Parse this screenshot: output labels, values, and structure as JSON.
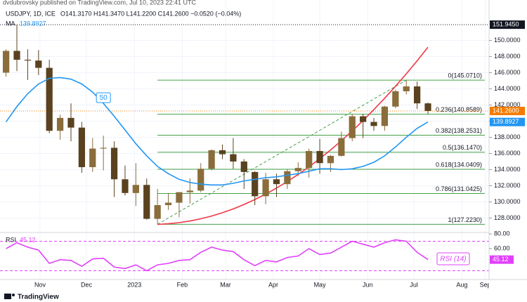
{
  "header": {
    "published": "dvdubrovsky published on TradingView.com, Jul 10, 2023 22:41 UTC",
    "symbol": "USDJPY, 1D, ICE",
    "quote": "O141.3170 H141.3470 L141.2200 C141.2600 −0.0520 (−0.04%)"
  },
  "footer": "TradingView",
  "chart_data": [
    {
      "type": "candlestick",
      "xlim": [
        -0.56,
        44.26
      ],
      "ylim": [
        126.3,
        155
      ],
      "xticks": [
        {
          "value": 3.14,
          "label": "Nov"
        },
        {
          "value": 7.43,
          "label": "Dec"
        },
        {
          "value": 11.86,
          "label": "2023"
        },
        {
          "value": 16.29,
          "label": "Feb"
        },
        {
          "value": 20.29,
          "label": "Mar"
        },
        {
          "value": 24.71,
          "label": "Apr"
        },
        {
          "value": 29,
          "label": "May"
        },
        {
          "value": 33.43,
          "label": "Jun"
        },
        {
          "value": 37.71,
          "label": "Jul"
        },
        {
          "value": 42.14,
          "label": "Aug"
        },
        {
          "value": 44.3,
          "label": "Sep"
        }
      ],
      "yticks": [
        {
          "value": 128,
          "label": "128.0000"
        },
        {
          "value": 130,
          "label": "130.0000"
        },
        {
          "value": 132,
          "label": "132.0000"
        },
        {
          "value": 134,
          "label": "134.0000"
        },
        {
          "value": 136,
          "label": "136.0000"
        },
        {
          "value": 138,
          "label": "138.0000"
        },
        {
          "value": 140,
          "label": "140.0000"
        },
        {
          "value": 142,
          "label": "142.0000"
        },
        {
          "value": 144,
          "label": "144.0000"
        },
        {
          "value": 146,
          "label": "146.0000"
        },
        {
          "value": 148,
          "label": "148.0000"
        },
        {
          "value": 150,
          "label": "150.0000"
        }
      ],
      "grid": true,
      "up_color": "#8a6d3b",
      "down_color": "#5a4220",
      "candles": {
        "open": [
          146.0,
          148.7,
          147.6,
          147.5,
          146.6,
          138.8,
          140.4,
          139.2,
          134.3,
          136.6,
          136.7,
          132.8,
          131.1,
          132.1,
          127.9,
          129.6,
          129.9,
          131.2,
          131.4,
          134.1,
          136.4,
          135.9,
          135.0,
          133.7,
          130.7,
          132.8,
          132.2,
          133.8,
          134.2,
          136.3,
          134.8,
          135.7,
          137.9,
          140.6,
          139.9,
          139.4,
          141.8,
          143.7,
          144.3,
          142.2
        ],
        "high": [
          148.9,
          151.945,
          148.9,
          148.8,
          147.6,
          140.8,
          142.2,
          139.9,
          137.9,
          138.2,
          137.5,
          134.5,
          134.8,
          132.9,
          131.6,
          131.1,
          131.2,
          132.9,
          134.8,
          136.5,
          137.1,
          137.9,
          135.3,
          133.8,
          133.6,
          133.5,
          134.0,
          134.9,
          136.6,
          137.8,
          135.8,
          138.7,
          140.9,
          140.9,
          140.4,
          141.9,
          143.9,
          145.071,
          144.9,
          142.3
        ],
        "low": [
          145.5,
          146.2,
          145.1,
          145.7,
          138.5,
          137.7,
          137.5,
          133.6,
          133.7,
          133.9,
          130.6,
          130.8,
          129.5,
          127.8,
          127.223,
          129.0,
          128.1,
          129.8,
          131.2,
          133.9,
          135.3,
          134.1,
          131.6,
          129.6,
          129.7,
          130.6,
          131.6,
          133.2,
          133.0,
          133.5,
          133.7,
          135.6,
          137.5,
          137.9,
          138.8,
          138.8,
          141.6,
          143.3,
          141.5,
          140.9
        ],
        "close": [
          148.7,
          147.6,
          147.5,
          146.6,
          138.8,
          140.4,
          139.2,
          134.3,
          136.6,
          136.7,
          132.8,
          131.1,
          132.1,
          127.9,
          129.6,
          129.9,
          131.2,
          131.4,
          134.1,
          136.4,
          135.9,
          135.0,
          133.7,
          130.7,
          132.8,
          132.2,
          133.8,
          134.2,
          136.3,
          134.8,
          135.7,
          137.9,
          140.6,
          139.9,
          139.4,
          141.8,
          143.7,
          144.3,
          142.2,
          141.26
        ]
      },
      "series": [
        {
          "name": "MA",
          "label": "50",
          "last_label": "139.8927",
          "color": "#2196f3",
          "values": [
            139.9,
            141.8,
            143.4,
            144.6,
            145.3,
            145.4,
            145.2,
            144.6,
            143.6,
            142.2,
            140.6,
            138.9,
            137.2,
            135.7,
            134.4,
            133.5,
            132.8,
            132.4,
            132.2,
            132.1,
            132.1,
            132.3,
            132.6,
            132.8,
            133.0,
            133.1,
            133.3,
            133.5,
            133.8,
            134.1,
            134.1,
            134.0,
            134.1,
            134.4,
            134.9,
            135.7,
            136.8,
            138.0,
            139.1,
            139.8927
          ]
        },
        {
          "color": "#f23645",
          "values": [
            null,
            null,
            null,
            null,
            null,
            null,
            null,
            null,
            null,
            null,
            null,
            null,
            null,
            null,
            127.21,
            127.29,
            127.43,
            127.63,
            127.91,
            128.25,
            128.66,
            129.13,
            129.68,
            130.29,
            130.96,
            131.71,
            132.52,
            133.4,
            134.34,
            135.35,
            136.43,
            137.58,
            138.79,
            140.07,
            141.42,
            142.83,
            144.31,
            145.86,
            147.47,
            149.15
          ]
        }
      ],
      "fib_color": "#43a047",
      "fib_levels": [
        {
          "value": 145.071,
          "label": "0(145.0710)"
        },
        {
          "value": 140.8589,
          "label": "0.236(140.8589)"
        },
        {
          "value": 138.2531,
          "label": "0.382(138.2531)"
        },
        {
          "value": 136.147,
          "label": "0.5(136.1470)"
        },
        {
          "value": 134.0409,
          "label": "0.618(134.0409)"
        },
        {
          "value": 131.0425,
          "label": "0.786(131.0425)"
        },
        {
          "value": 127.223,
          "label": "1(127.2230)"
        }
      ],
      "price_labels": [
        {
          "value": 151.945,
          "label": "151.9450",
          "color": "#131722"
        },
        {
          "value": 141.26,
          "label": "141.2600",
          "color": "#f57c00"
        },
        {
          "value": 139.8927,
          "label": "139.8927",
          "color": "#2196f3"
        }
      ]
    },
    {
      "type": "line",
      "ylim": [
        16.2,
        82.9
      ],
      "yticks": [
        {
          "value": 80,
          "label": "80.00"
        },
        {
          "value": 60,
          "label": "60.00"
        }
      ],
      "bands": [
        70,
        30
      ],
      "series": [
        {
          "name": "RSI",
          "label": "RSI (14)",
          "last_label": "45.12",
          "color": "#e040fb",
          "values": [
            60,
            68,
            62,
            58,
            40,
            45,
            44,
            36,
            46,
            47,
            35,
            33,
            38,
            30,
            38,
            40,
            44,
            45,
            55,
            62,
            58,
            56,
            45,
            37,
            44,
            42,
            48,
            50,
            60,
            52,
            54,
            62,
            70,
            66,
            62,
            68,
            72,
            70,
            55,
            45.12
          ]
        }
      ]
    }
  ]
}
